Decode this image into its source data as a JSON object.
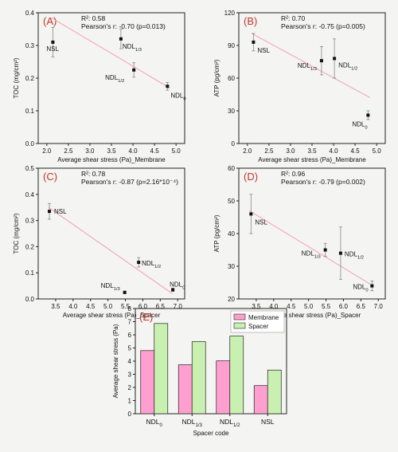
{
  "colors": {
    "background": "#f4f4f2",
    "panel_letter": "#c0392b",
    "trend_line": "#f0a0b4",
    "point": "#111111",
    "error_bar": "#888888",
    "bar_membrane": "#ff9fcf",
    "bar_spacer": "#c8f0b0",
    "bar_stroke": "#222222",
    "axis": "#222222"
  },
  "chart_data": [
    {
      "type": "scatter",
      "panel": "(A)",
      "xlabel": "Average shear stress (Pa)_Membrane",
      "ylabel": "TOC (mg/cm²)",
      "xlim": [
        1.8,
        5.2
      ],
      "ylim": [
        0.0,
        0.4
      ],
      "xticks": [
        "2.0",
        "2.5",
        "3.0",
        "3.5",
        "4.0",
        "4.5",
        "5.0"
      ],
      "yticks": [
        "0.0",
        "0.1",
        "0.2",
        "0.3",
        "0.4"
      ],
      "stats": [
        "R²: 0.58",
        "Pearson's r: -0.70 (p=0.013)"
      ],
      "trend": {
        "x": [
          2.1,
          4.85
        ],
        "y": [
          0.385,
          0.17
        ]
      },
      "points": [
        {
          "label": "NSL",
          "x": 2.14,
          "y": 0.31,
          "err": 0.045
        },
        {
          "label": "NDL1/3",
          "x": 3.72,
          "y": 0.32,
          "err": 0.03
        },
        {
          "label": "NDL1/2",
          "x": 4.02,
          "y": 0.225,
          "err": 0.022
        },
        {
          "label": "NDL0",
          "x": 4.8,
          "y": 0.175,
          "err": 0.012
        }
      ]
    },
    {
      "type": "scatter",
      "panel": "(B)",
      "xlabel": "Average shear stress (Pa)_Membrane",
      "ylabel": "ATP (pg/cm²)",
      "xlim": [
        1.8,
        5.2
      ],
      "ylim": [
        0,
        120
      ],
      "xticks": [
        "2.0",
        "2.5",
        "3.0",
        "3.5",
        "4.0",
        "4.5",
        "5.0"
      ],
      "yticks": [
        "0",
        "30",
        "60",
        "90",
        "120"
      ],
      "stats": [
        "R²: 0.70",
        "Pearson's r: -0.75 (p=0.005)"
      ],
      "trend": {
        "x": [
          2.1,
          4.85
        ],
        "y": [
          101,
          42
        ]
      },
      "points": [
        {
          "label": "NSL",
          "x": 2.14,
          "y": 93,
          "err": 8
        },
        {
          "label": "NDL1/3",
          "x": 3.72,
          "y": 76,
          "err": 13
        },
        {
          "label": "NDL1/2",
          "x": 4.02,
          "y": 78,
          "err": 18
        },
        {
          "label": "NDL0",
          "x": 4.8,
          "y": 26,
          "err": 4
        }
      ]
    },
    {
      "type": "scatter",
      "panel": "(C)",
      "xlabel": "Average shear stress (Pa)_Spacer",
      "ylabel": "TOC (mg/cm²)",
      "xlim": [
        3.0,
        7.2
      ],
      "ylim": [
        0.0,
        0.5
      ],
      "xticks": [
        "3.5",
        "4.0",
        "4.5",
        "5.0",
        "5.5",
        "6.0",
        "6.5",
        "7.0"
      ],
      "yticks": [
        "0.0",
        "0.1",
        "0.2",
        "0.3",
        "0.4",
        "0.5"
      ],
      "stats": [
        "R²: 0.78",
        "Pearson's r: -0.87 (p=2.16*10⁻⁴)"
      ],
      "trend": {
        "x": [
          3.3,
          6.85
        ],
        "y": [
          0.35,
          0.02
        ]
      },
      "points": [
        {
          "label": "NSL",
          "x": 3.32,
          "y": 0.335,
          "err": 0.03
        },
        {
          "label": "NDL1/3",
          "x": 5.48,
          "y": 0.025,
          "err": 0.005
        },
        {
          "label": "NDL1/2",
          "x": 5.88,
          "y": 0.14,
          "err": 0.018
        },
        {
          "label": "NDL0",
          "x": 6.86,
          "y": 0.035,
          "err": 0.006
        }
      ]
    },
    {
      "type": "scatter",
      "panel": "(D)",
      "xlabel": "Average shear stress (Pa)_Spacer",
      "ylabel": "ATP (pg/cm²)",
      "xlim": [
        3.0,
        7.2
      ],
      "ylim": [
        20,
        60
      ],
      "xticks": [
        "3.5",
        "4.0",
        "4.5",
        "5.0",
        "5.5",
        "6.0",
        "6.5",
        "7.0"
      ],
      "yticks": [
        "20",
        "30",
        "40",
        "50",
        "60"
      ],
      "stats": [
        "R²: 0.96",
        "Pearson's r: -0.79 (p=0.002)"
      ],
      "trend": {
        "x": [
          3.3,
          6.85
        ],
        "y": [
          47,
          24
        ]
      },
      "points": [
        {
          "label": "NSL",
          "x": 3.35,
          "y": 46,
          "err": 6
        },
        {
          "label": "NDL1/3",
          "x": 5.48,
          "y": 35,
          "err": 2
        },
        {
          "label": "NDL1/2",
          "x": 5.92,
          "y": 34,
          "err": 8
        },
        {
          "label": "NDL0",
          "x": 6.82,
          "y": 24,
          "err": 1.5
        }
      ]
    },
    {
      "type": "bar",
      "panel": "(E)",
      "xlabel": "Spacer code",
      "ylabel": "Average shear stress (Pa)",
      "ylim": [
        0,
        8
      ],
      "yticks": [
        "0",
        "1",
        "2",
        "3",
        "4",
        "5",
        "6",
        "7",
        "8"
      ],
      "categories": [
        "NDL0",
        "NDL1/3",
        "NDL1/2",
        "NSL"
      ],
      "legend_position": "top-right",
      "series": [
        {
          "name": "Membrane",
          "values": [
            4.8,
            3.72,
            4.02,
            2.14
          ]
        },
        {
          "name": "Spacer",
          "values": [
            6.86,
            5.48,
            5.9,
            3.32
          ]
        }
      ]
    }
  ]
}
